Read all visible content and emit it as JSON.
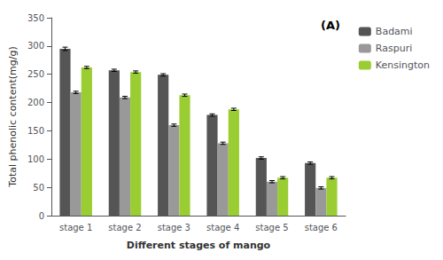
{
  "chart_data": {
    "type": "bar",
    "xlabel": "Different stages of mango",
    "ylabel": "Total phenolic content(mg/g)",
    "annotation": "(A)",
    "categories": [
      "stage 1",
      "stage 2",
      "stage 3",
      "stage 4",
      "stage 5",
      "stage 6"
    ],
    "series": [
      {
        "name": "Badami",
        "color": "#555555",
        "values": [
          295,
          257,
          249,
          178,
          102,
          93
        ],
        "errors": [
          3,
          2,
          2,
          2,
          2,
          2
        ]
      },
      {
        "name": "Raspuri",
        "color": "#999999",
        "values": [
          218,
          209,
          160,
          128,
          60,
          49
        ],
        "errors": [
          2,
          2,
          2,
          2,
          2,
          2
        ]
      },
      {
        "name": "Kensington",
        "color": "#9acd32",
        "values": [
          262,
          254,
          213,
          188,
          67,
          67
        ],
        "errors": [
          2,
          2,
          2,
          2,
          2,
          2
        ]
      }
    ],
    "ylim": [
      0,
      350
    ],
    "yticks": [
      0,
      50,
      100,
      150,
      200,
      250,
      300,
      350
    ],
    "grid": false,
    "legend": "right"
  }
}
